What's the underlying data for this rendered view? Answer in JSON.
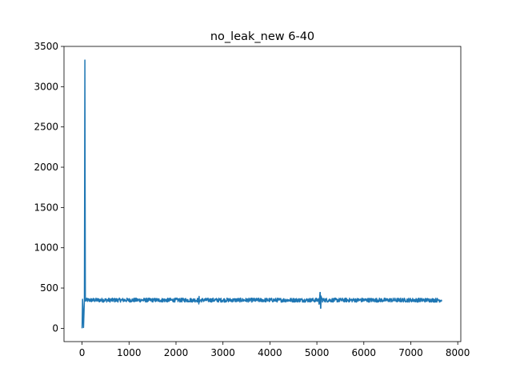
{
  "chart_data": {
    "type": "line",
    "title": "no_leak_new  6-40",
    "xlabel": "",
    "ylabel": "",
    "xlim": [
      -385,
      8065
    ],
    "ylim": [
      -165,
      3500
    ],
    "x_ticks": [
      0,
      1000,
      2000,
      3000,
      4000,
      5000,
      6000,
      7000,
      8000
    ],
    "x_tick_labels": [
      "0",
      "1000",
      "2000",
      "3000",
      "4000",
      "5000",
      "6000",
      "7000",
      "8000"
    ],
    "y_ticks": [
      0,
      500,
      1000,
      1500,
      2000,
      2500,
      3000,
      3500
    ],
    "y_tick_labels": [
      "0",
      "500",
      "1000",
      "1500",
      "2000",
      "2500",
      "3000",
      "3500"
    ],
    "grid": false,
    "series": [
      {
        "color": "#1f77b4",
        "x_range": [
          0,
          7660
        ],
        "baseline": 350,
        "noise_band": [
          325,
          375
        ],
        "approx_points": [
          {
            "x": 0,
            "y": 0
          },
          {
            "x": 10,
            "y": 360
          },
          {
            "x": 30,
            "y": 10
          },
          {
            "x": 50,
            "y": 350
          },
          {
            "x": 60,
            "y": 3330
          },
          {
            "x": 70,
            "y": 340
          },
          {
            "x": 2500,
            "y": 405
          },
          {
            "x": 5070,
            "y": 445
          },
          {
            "x": 5080,
            "y": 250
          },
          {
            "x": 7660,
            "y": 350
          }
        ]
      }
    ]
  }
}
